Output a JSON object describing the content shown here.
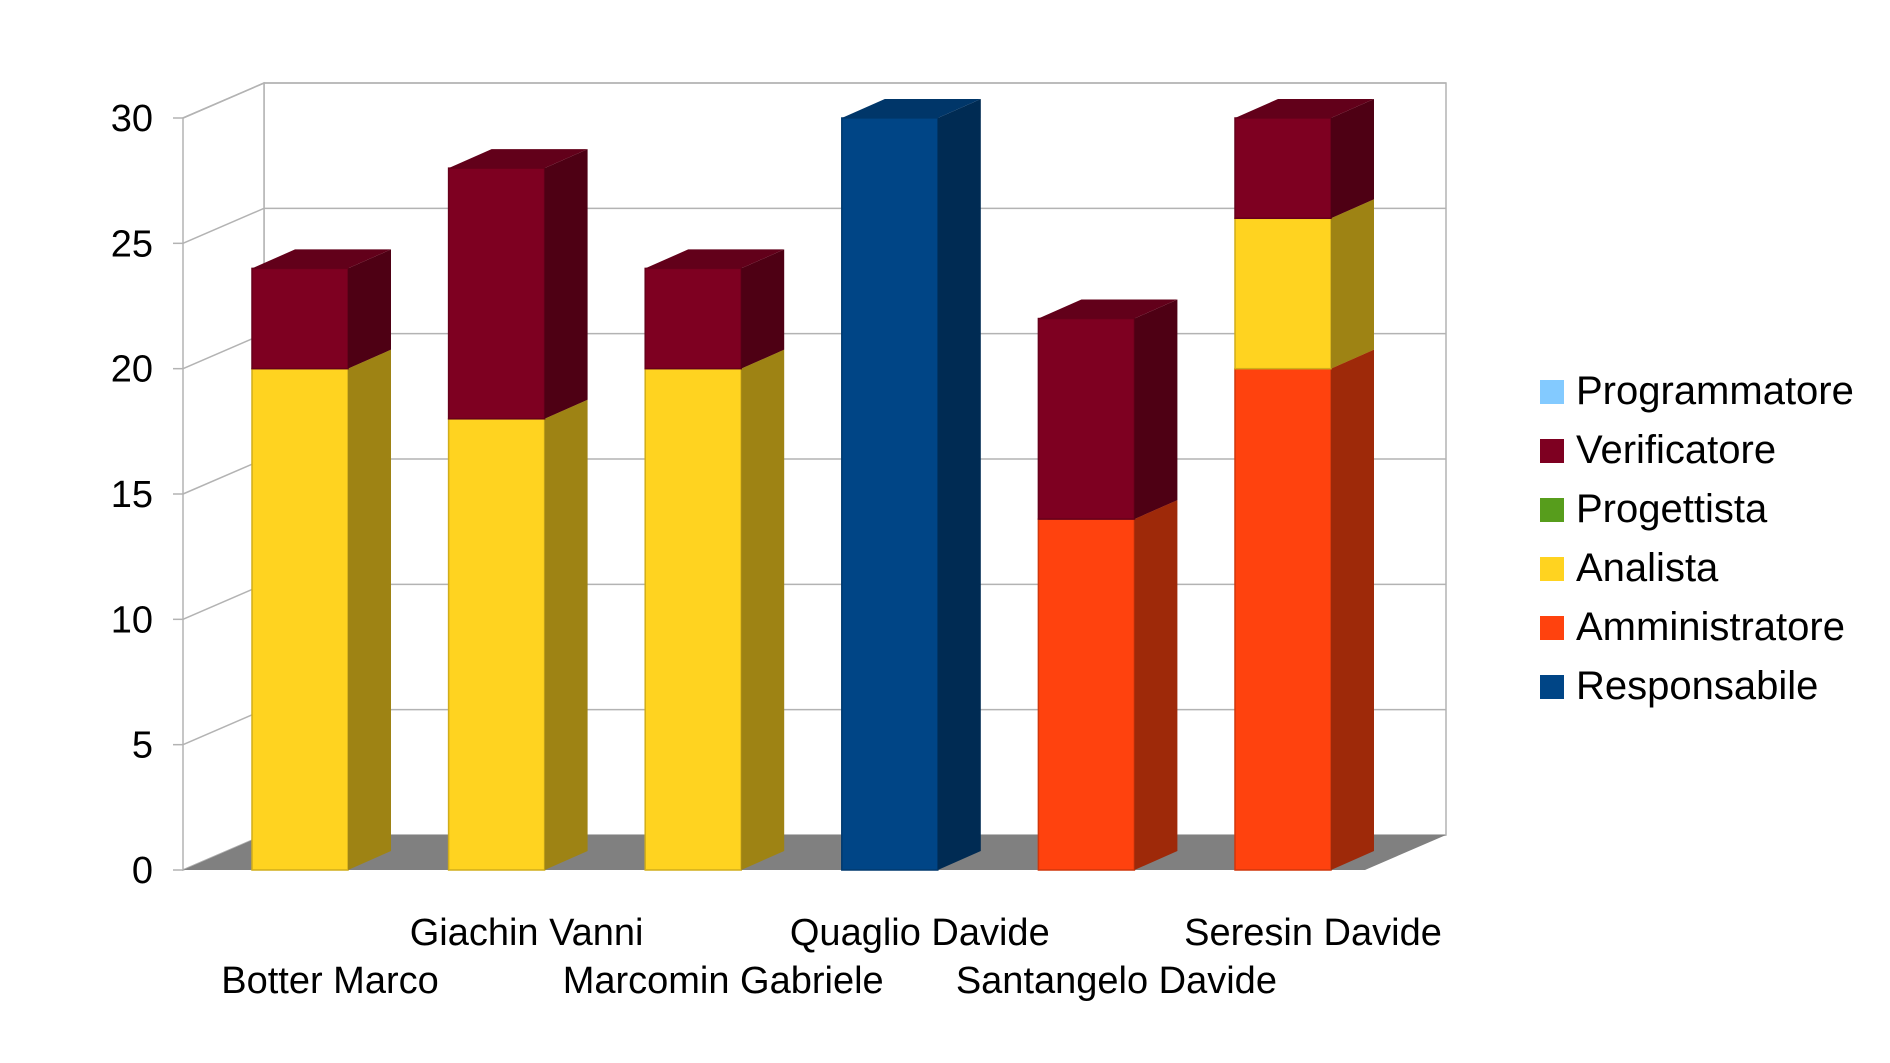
{
  "chart_data": {
    "type": "bar",
    "stacked": true,
    "three_d": true,
    "categories": [
      "Botter Marco",
      "Giachin Vanni",
      "Marcomin Gabriele",
      "Quaglio Davide",
      "Santangelo Davide",
      "Seresin Davide"
    ],
    "series": [
      {
        "name": "Responsabile",
        "color": "#004586",
        "values": [
          0,
          0,
          0,
          30,
          0,
          0
        ]
      },
      {
        "name": "Amministratore",
        "color": "#ff420e",
        "values": [
          0,
          0,
          0,
          0,
          14,
          20
        ]
      },
      {
        "name": "Analista",
        "color": "#ffd320",
        "values": [
          20,
          18,
          20,
          0,
          0,
          6
        ]
      },
      {
        "name": "Progettista",
        "color": "#579d1c",
        "values": [
          0,
          0,
          0,
          0,
          0,
          0
        ]
      },
      {
        "name": "Verificatore",
        "color": "#7e0021",
        "values": [
          4,
          10,
          4,
          0,
          8,
          4
        ]
      },
      {
        "name": "Programmatore",
        "color": "#83caff",
        "values": [
          0,
          0,
          0,
          0,
          0,
          0
        ]
      }
    ],
    "legend_order": [
      "Programmatore",
      "Verificatore",
      "Progettista",
      "Analista",
      "Amministratore",
      "Responsabile"
    ],
    "yticks": [
      0,
      5,
      10,
      15,
      20,
      25,
      30
    ],
    "ylim": [
      0,
      30
    ],
    "grid": true,
    "legend_position": "right"
  }
}
